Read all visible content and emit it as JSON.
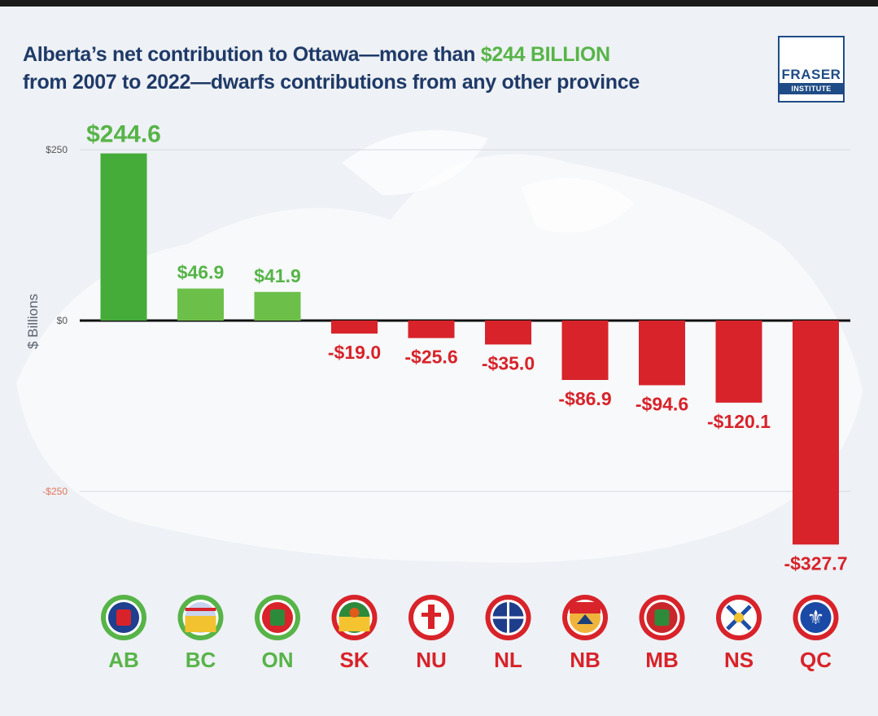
{
  "title": {
    "part1": "Alberta’s net contribution to Ottawa—more than ",
    "highlight": "$244 BILLION",
    "part2": "from 2007 to 2022—dwarfs contributions from any other province"
  },
  "logo": {
    "line1": "FRASER",
    "line2": "INSTITUTE"
  },
  "colors": {
    "positive": "#57b448",
    "positive_bar": "#6cc04a",
    "negative": "#d8232a",
    "title": "#1f3a68"
  },
  "chart_data": {
    "type": "bar",
    "categories": [
      "AB",
      "BC",
      "ON",
      "SK",
      "NU",
      "NL",
      "NB",
      "MB",
      "NS",
      "QC"
    ],
    "values": [
      244.6,
      46.9,
      41.9,
      -19.0,
      -25.6,
      -35.0,
      -86.9,
      -94.6,
      -120.1,
      -327.7
    ],
    "value_labels": [
      "$244.6",
      "$46.9",
      "$41.9",
      "-$19.0",
      "-$25.6",
      "-$35.0",
      "-$86.9",
      "-$94.6",
      "-$120.1",
      "-$327.7"
    ],
    "ylabel": "$ Billions",
    "ylim": [
      -327.7,
      250
    ],
    "yticks": [
      250,
      0,
      -250
    ],
    "ytick_labels": [
      "$250",
      "$0",
      "-$250"
    ],
    "grid": true,
    "flag_icons": [
      "alberta-flag-icon",
      "british-columbia-flag-icon",
      "ontario-flag-icon",
      "saskatchewan-flag-icon",
      "nunavut-flag-icon",
      "newfoundland-flag-icon",
      "new-brunswick-flag-icon",
      "manitoba-flag-icon",
      "nova-scotia-flag-icon",
      "quebec-flag-icon"
    ]
  }
}
